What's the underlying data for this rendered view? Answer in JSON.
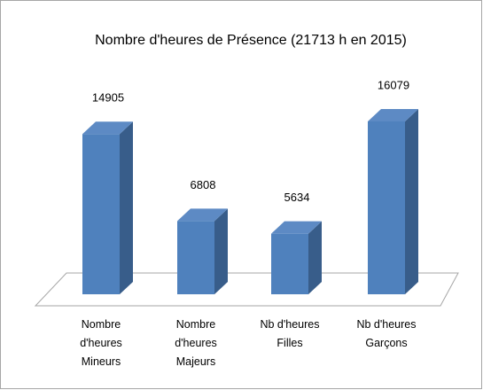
{
  "chart_data": {
    "type": "bar3d",
    "title": "Nombre d'heures de Présence (21713 h en 2015)",
    "categories": [
      "Nombre d'heures Mineurs",
      "Nombre d'heures Majeurs",
      "Nb d'heures Filles",
      "Nb d'heures Garçons"
    ],
    "values": [
      14905,
      6808,
      5634,
      16079
    ],
    "color": "#4f81bd"
  }
}
